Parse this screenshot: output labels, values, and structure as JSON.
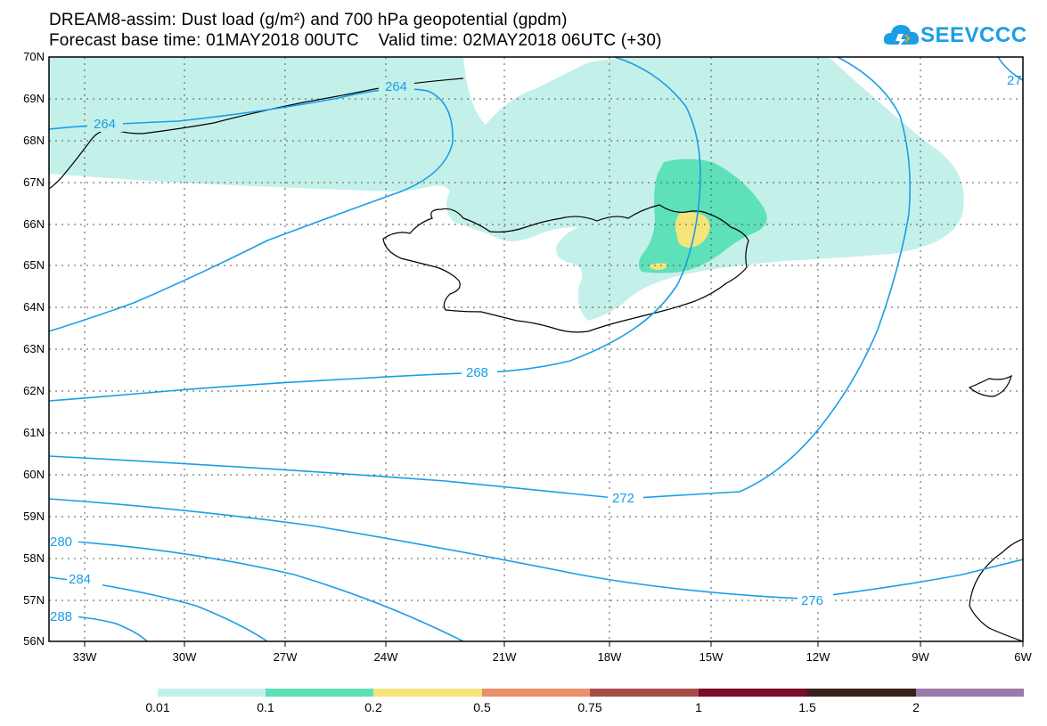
{
  "header": {
    "line1": "DREAM8-assim: Dust load (g/m²) and 700 hPa geopotential (gpdm)",
    "line2": "Forecast base time: 01MAY2018 00UTC    Valid time: 02MAY2018 06UTC (+30)"
  },
  "logo": {
    "text": "SEEVCCC",
    "icon": "cloud-icon",
    "color": "#1a9ee6"
  },
  "map": {
    "region": "North Atlantic / Iceland",
    "lat_labels": [
      "70N",
      "69N",
      "68N",
      "67N",
      "66N",
      "65N",
      "64N",
      "63N",
      "62N",
      "61N",
      "60N",
      "59N",
      "58N",
      "57N",
      "56N"
    ],
    "lon_labels": [
      "33W",
      "30W",
      "27W",
      "24W",
      "21W",
      "18W",
      "15W",
      "12W",
      "9W",
      "6W"
    ],
    "contour_labels": [
      "264",
      "264",
      "268",
      "272",
      "276",
      "280",
      "284",
      "288",
      "27"
    ],
    "contour_color": "#1a9ee6"
  },
  "colorbar": {
    "labels": [
      "0.01",
      "0.1",
      "0.2",
      "0.5",
      "0.75",
      "1",
      "1.5",
      "2"
    ],
    "colors": [
      "#c4f0ea",
      "#5ee0b8",
      "#f5e47a",
      "#e8916a",
      "#a84c48",
      "#7a0a2a",
      "#3a2018",
      "#9a7aaa"
    ]
  },
  "chart_data": {
    "type": "heatmap",
    "title": "DREAM8-assim: Dust load (g/m²) and 700 hPa geopotential (gpdm)",
    "xlabel": "",
    "ylabel": "",
    "xlim": [
      "34.5W",
      "6W"
    ],
    "ylim": [
      "56N",
      "70N"
    ],
    "x_ticks": [
      "33W",
      "30W",
      "27W",
      "24W",
      "21W",
      "18W",
      "15W",
      "12W",
      "9W",
      "6W"
    ],
    "y_ticks": [
      "56N",
      "57N",
      "58N",
      "59N",
      "60N",
      "61N",
      "62N",
      "63N",
      "64N",
      "65N",
      "66N",
      "67N",
      "68N",
      "69N",
      "70N"
    ],
    "grid": true,
    "dust_levels": [
      0.01,
      0.1,
      0.2,
      0.5,
      0.75,
      1,
      1.5,
      2
    ],
    "contour_levels_gpdm": [
      264,
      268,
      272,
      276,
      280,
      284,
      288
    ]
  }
}
